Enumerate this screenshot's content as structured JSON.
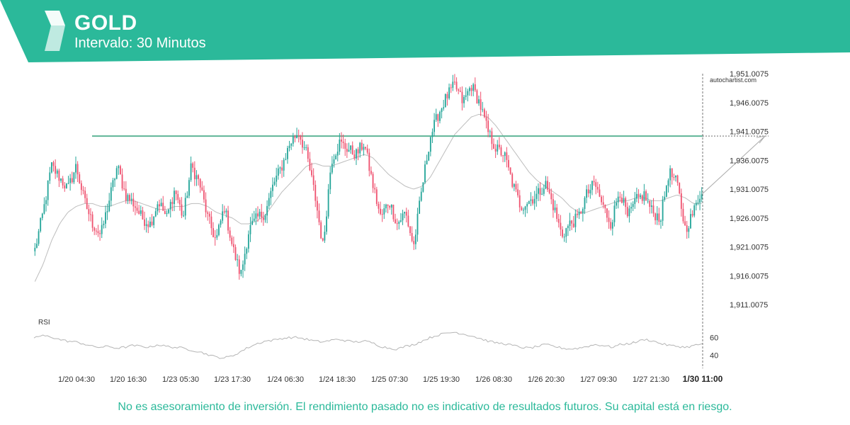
{
  "header": {
    "title": "GOLD",
    "subtitle": "Intervalo: 30 Minutos",
    "brand_color": "#2bb99a"
  },
  "watermark": "autochartist.com",
  "disclaimer": "No es asesoramiento de inversión. El rendimiento pasado no es indicativo de resultados futuros. Su capital está en riesgo.",
  "colors": {
    "up": "#26a69a",
    "down": "#ef5370",
    "level": "#5fb597",
    "ma": "#bdbdbd",
    "text": "#333333",
    "disclaimer": "#2bb99a"
  },
  "chart_data": {
    "type": "candlestick",
    "ylim": [
      1908,
      1953
    ],
    "y_ticks": [
      "1,951.0075",
      "1,946.0075",
      "1,941.0075",
      "1,936.0075",
      "1,931.0075",
      "1,926.0075",
      "1,921.0075",
      "1,916.0075",
      "1,911.0075"
    ],
    "y_tick_values": [
      1951.0075,
      1946.0075,
      1941.0075,
      1936.0075,
      1931.0075,
      1926.0075,
      1921.0075,
      1916.0075,
      1911.0075
    ],
    "x_ticks": [
      "1/20 04:30",
      "1/20 16:30",
      "1/23 05:30",
      "1/23 17:30",
      "1/24 06:30",
      "1/24 18:30",
      "1/25 07:30",
      "1/25 19:30",
      "1/26 08:30",
      "1/26 20:30",
      "1/27 09:30",
      "1/27 21:30"
    ],
    "current_label": "1/30 11:00",
    "close_path": [
      1920.5,
      1927,
      1935,
      1933,
      1931,
      1935,
      1929,
      1925,
      1923,
      1929,
      1935,
      1930,
      1928.5,
      1926,
      1925,
      1929,
      1926,
      1931,
      1926,
      1935,
      1932,
      1926,
      1922,
      1928,
      1921,
      1916,
      1924,
      1926,
      1927,
      1932,
      1935,
      1939,
      1941,
      1937,
      1930,
      1921,
      1936,
      1939,
      1938,
      1937,
      1939,
      1932,
      1926,
      1929,
      1925,
      1927,
      1921,
      1931,
      1940,
      1944,
      1947,
      1949,
      1946,
      1949,
      1946,
      1941,
      1938,
      1937,
      1932,
      1928,
      1929,
      1930,
      1932,
      1928,
      1923,
      1925,
      1926,
      1930,
      1932,
      1928,
      1925,
      1931,
      1926,
      1929,
      1930,
      1927,
      1926,
      1934,
      1932,
      1924,
      1927,
      1931
    ],
    "ma_path": [
      1915,
      1918,
      1922,
      1925,
      1927,
      1928,
      1928.5,
      1928.5,
      1928,
      1928,
      1928.5,
      1929,
      1929,
      1928.5,
      1928,
      1927.5,
      1927.5,
      1928,
      1928,
      1928.5,
      1928.5,
      1928,
      1927,
      1926.5,
      1926,
      1925,
      1925,
      1925.5,
      1926.5,
      1928.5,
      1930.5,
      1932,
      1933.5,
      1935,
      1935.5,
      1935,
      1935,
      1935.5,
      1936,
      1936.5,
      1937,
      1936.5,
      1935,
      1933.5,
      1932.5,
      1931.5,
      1931,
      1931.5,
      1933,
      1935.5,
      1938,
      1940.5,
      1942,
      1943.5,
      1944,
      1943.5,
      1942,
      1940,
      1938,
      1936,
      1934,
      1932.5,
      1931.5,
      1930.5,
      1929.5,
      1928,
      1927,
      1927,
      1927.5,
      1928,
      1928.5,
      1929,
      1929,
      1929.5,
      1929.5,
      1929,
      1929,
      1929.5,
      1930,
      1929.5,
      1928.5,
      1928.5
    ],
    "resistance_level": 1940.2,
    "forecast_target": 1940.2,
    "rsi": {
      "label": "RSI",
      "ticks": [
        60,
        40
      ],
      "ylim": [
        30,
        70
      ],
      "values": [
        60,
        62,
        61,
        58,
        56,
        55,
        53,
        50,
        49,
        50,
        48,
        49,
        51,
        50,
        49,
        52,
        50,
        49,
        48,
        46,
        44,
        41,
        38,
        37,
        39,
        44,
        49,
        53,
        56,
        57,
        59,
        60,
        60,
        58,
        56,
        55,
        57,
        58,
        56,
        55,
        56,
        54,
        50,
        48,
        47,
        50,
        52,
        56,
        60,
        63,
        65,
        66,
        64,
        62,
        59,
        56,
        54,
        53,
        51,
        49,
        48,
        50,
        52,
        50,
        48,
        47,
        48,
        50,
        52,
        51,
        49,
        52,
        53,
        55,
        58,
        56,
        53,
        51,
        50,
        49,
        51,
        53
      ]
    }
  }
}
